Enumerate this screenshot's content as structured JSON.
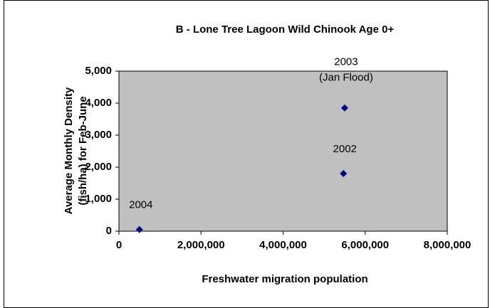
{
  "chart_data": {
    "type": "scatter",
    "title": "B - Lone Tree Lagoon Wild Chinook Age 0+",
    "x_label": "Freshwater migration population",
    "y_label": [
      "Average Monthly Density",
      "(fish/ha) for Feb-June"
    ],
    "x": [
      500000,
      5470000,
      5500000
    ],
    "values": [
      50,
      1800,
      3850
    ],
    "point_labels": [
      [
        "2004"
      ],
      [
        "2002"
      ],
      [
        "2003",
        "(Jan Flood)"
      ]
    ],
    "color": "#000080",
    "plot_background": "#c0c0c0",
    "xlim": [
      0,
      8000000
    ],
    "xticks": [
      0,
      {
        "value": 2000000,
        "label": "2,000,000"
      },
      {
        "value": 4000000,
        "label": "4,000,000"
      },
      {
        "value": 6000000,
        "label": "6,000,000"
      },
      {
        "value": 8000000,
        "label": "8,000,000"
      }
    ],
    "ylim": [
      0,
      5000
    ],
    "yticks": [
      0,
      {
        "value": 1000,
        "label": "1,000"
      },
      {
        "value": 2000,
        "label": "2,000"
      },
      {
        "value": 3000,
        "label": "3,000"
      },
      {
        "value": 4000,
        "label": "4,000"
      },
      {
        "value": 5000,
        "label": "5,000"
      }
    ],
    "grid": false
  }
}
